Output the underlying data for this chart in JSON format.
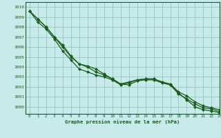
{
  "title": "Graphe pression niveau de la mer (hPa)",
  "bg_color": "#c8eaea",
  "plot_bg_color": "#c8eaea",
  "grid_color": "#90c8b8",
  "line_color": "#1a5c1a",
  "label_bottom_color": "#1a5c1a",
  "xlim": [
    -0.5,
    23
  ],
  "ylim": [
    999.3,
    1010.5
  ],
  "yticks": [
    1000,
    1001,
    1002,
    1003,
    1004,
    1005,
    1006,
    1007,
    1008,
    1009,
    1010
  ],
  "xticks": [
    0,
    1,
    2,
    3,
    4,
    5,
    6,
    7,
    8,
    9,
    10,
    11,
    12,
    13,
    14,
    15,
    16,
    17,
    18,
    19,
    20,
    21,
    22,
    23
  ],
  "series": [
    [
      1009.6,
      1008.8,
      1008.0,
      1007.0,
      1006.0,
      1005.0,
      1004.3,
      1004.1,
      1003.8,
      1003.3,
      1002.8,
      1002.3,
      1002.2,
      1002.6,
      1002.7,
      1002.7,
      1002.4,
      1002.2,
      1001.3,
      1000.8,
      1000.3,
      999.9,
      999.8,
      999.5
    ],
    [
      1009.6,
      1008.8,
      1008.0,
      1007.0,
      1006.2,
      1005.1,
      1004.3,
      1004.0,
      1003.5,
      1003.2,
      1002.8,
      1002.3,
      1002.5,
      1002.7,
      1002.8,
      1002.8,
      1002.5,
      1002.3,
      1001.5,
      1001.1,
      1000.5,
      1000.1,
      999.9,
      999.7
    ],
    [
      1009.6,
      1008.5,
      1007.8,
      1006.8,
      1005.6,
      1004.7,
      1003.8,
      1003.5,
      1003.2,
      1003.0,
      1002.7,
      1002.2,
      1002.4,
      1002.7,
      1002.8,
      1002.8,
      1002.5,
      1002.2,
      1001.4,
      1000.7,
      1000.0,
      999.7,
      999.6,
      999.4
    ]
  ],
  "subgrid_minor": 5,
  "marker": "D",
  "markersize": 2.0,
  "linewidth": 0.9
}
